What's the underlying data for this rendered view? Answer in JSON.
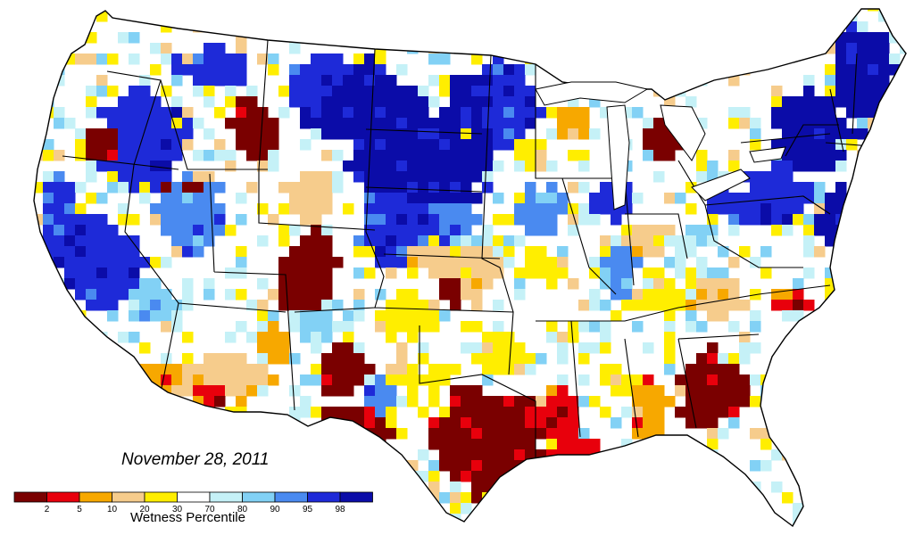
{
  "date": "November 28, 2011",
  "legend": {
    "title": "Wetness Percentile",
    "ticks": [
      "2",
      "5",
      "10",
      "20",
      "30",
      "70",
      "80",
      "90",
      "95",
      "98"
    ],
    "classes": [
      {
        "name": "p0-2",
        "color": "#7a0000"
      },
      {
        "name": "p2-5",
        "color": "#e8000c"
      },
      {
        "name": "p5-10",
        "color": "#f7a800"
      },
      {
        "name": "p10-20",
        "color": "#f6cc8c"
      },
      {
        "name": "p20-30",
        "color": "#ffee00"
      },
      {
        "name": "p30-70",
        "color": "#ffffff"
      },
      {
        "name": "p70-80",
        "color": "#c5f1f7"
      },
      {
        "name": "p80-90",
        "color": "#82d1f5"
      },
      {
        "name": "p90-95",
        "color": "#4a8af0"
      },
      {
        "name": "p95-98",
        "color": "#1e2ad8"
      },
      {
        "name": "p98-100",
        "color": "#0b0ca8"
      }
    ]
  }
}
